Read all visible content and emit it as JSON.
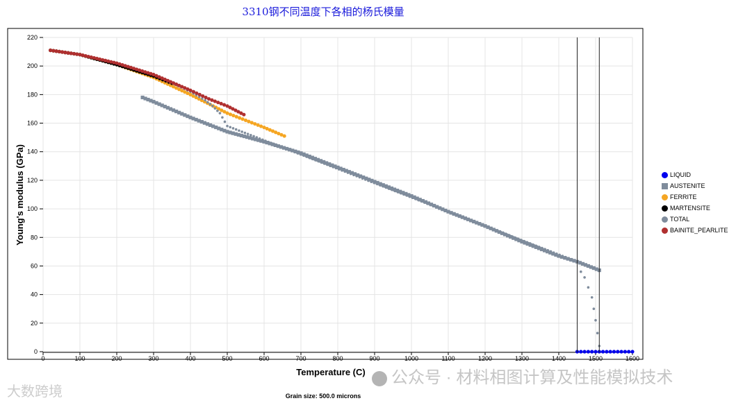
{
  "chart_data": {
    "type": "scatter",
    "title": "3310钢不同温度下各相的杨氏模量",
    "xlabel": "Temperature (C)",
    "ylabel": "Young's modulus (GPa)",
    "footer": "Grain size: 500.0 microns",
    "xlim": [
      0,
      1600
    ],
    "ylim": [
      0,
      220
    ],
    "x_ticks": [
      0,
      100,
      200,
      300,
      400,
      500,
      600,
      700,
      800,
      900,
      1000,
      1100,
      1200,
      1300,
      1400,
      1500,
      1600
    ],
    "y_ticks": [
      0,
      20,
      40,
      60,
      80,
      100,
      120,
      140,
      160,
      180,
      200,
      220
    ],
    "grid": true,
    "legend_position": "right",
    "vertical_lines": [
      1450,
      1510
    ],
    "series": [
      {
        "name": "LIQUID",
        "color": "#0000ee",
        "marker": "circle",
        "x": [
          1450,
          1460,
          1470,
          1480,
          1490,
          1500,
          1510,
          1520,
          1530,
          1540,
          1550,
          1560,
          1570,
          1580,
          1590,
          1600
        ],
        "y": [
          0,
          0,
          0,
          0,
          0,
          0,
          0,
          0,
          0,
          0,
          0,
          0,
          0,
          0,
          0,
          0
        ]
      },
      {
        "name": "AUSTENITE",
        "color": "#7f8c9c",
        "marker": "square",
        "x": [
          270,
          300,
          400,
          500,
          600,
          700,
          800,
          900,
          1000,
          1100,
          1200,
          1300,
          1400,
          1450,
          1510
        ],
        "y": [
          178,
          175,
          164,
          154,
          147,
          139,
          129,
          119,
          109,
          98,
          88,
          77,
          67,
          63,
          57
        ]
      },
      {
        "name": "FERRITE",
        "color": "#f5a623",
        "marker": "circle",
        "x": [
          20,
          100,
          200,
          300,
          400,
          500,
          550,
          600,
          655
        ],
        "y": [
          211,
          208,
          201,
          192,
          180,
          167,
          162,
          157,
          151
        ]
      },
      {
        "name": "MARTENSITE",
        "color": "#000000",
        "marker": "circle",
        "x": [
          20,
          100,
          200,
          300,
          350
        ],
        "y": [
          211,
          208,
          201,
          193,
          188
        ]
      },
      {
        "name": "TOTAL",
        "color": "#7f8c9c",
        "marker": "circle",
        "x": [
          20,
          100,
          200,
          300,
          350,
          400,
          440,
          460,
          480,
          500,
          1450,
          1460,
          1470,
          1480,
          1490,
          1495,
          1500,
          1505,
          1510
        ],
        "y": [
          211,
          208,
          201,
          193,
          188,
          182,
          176,
          172,
          167,
          158,
          63,
          56,
          52,
          45,
          38,
          30,
          22,
          13,
          4
        ]
      },
      {
        "name": "BAINITE_PEARLITE",
        "color": "#b03030",
        "marker": "circle",
        "x": [
          20,
          100,
          200,
          300,
          400,
          450,
          500,
          545
        ],
        "y": [
          211,
          208,
          202,
          194,
          183,
          177,
          172,
          166
        ]
      }
    ]
  },
  "watermark": {
    "right": "公众号 · 材料相图计算及性能模拟技术",
    "left": "大数跨境"
  },
  "colors": {
    "title": "#1a1adb",
    "grid": "#e4e4e4",
    "frame": "#000000"
  }
}
